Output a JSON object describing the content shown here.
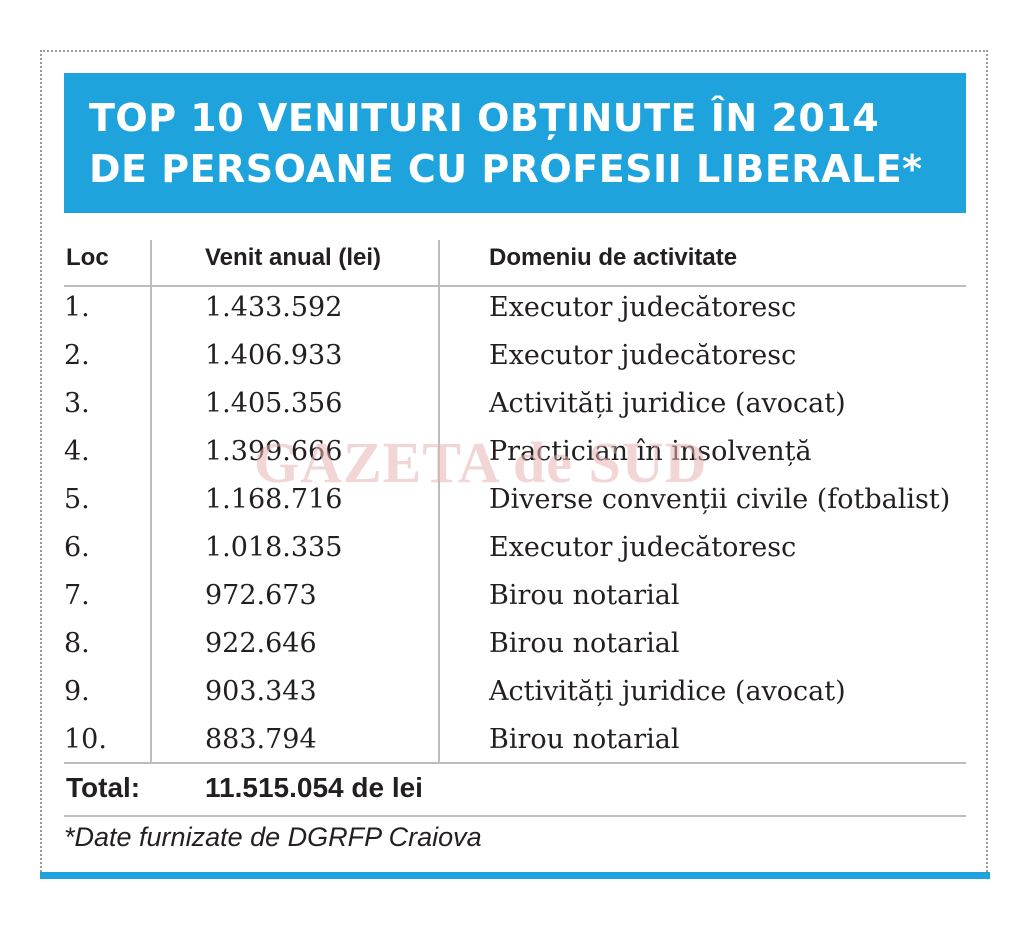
{
  "chart_data": {
    "type": "table",
    "title_lines": [
      "TOP 10 VENITURI OBȚINUTE ÎN 2014",
      "DE PERSOANE CU PROFESII LIBERALE*"
    ],
    "columns": [
      "Loc",
      "Venit anual (lei)",
      "Domeniu de activitate"
    ],
    "rows": [
      [
        "1.",
        "1.433.592",
        "Executor judecătoresc"
      ],
      [
        "2.",
        "1.406.933",
        "Executor judecătoresc"
      ],
      [
        "3.",
        "1.405.356",
        "Activități juridice (avocat)"
      ],
      [
        "4.",
        "1.399.666",
        "Practician în insolvență"
      ],
      [
        "5.",
        "1.168.716",
        "Diverse convenții civile (fotbalist)"
      ],
      [
        "6.",
        "1.018.335",
        "Executor judecătoresc"
      ],
      [
        "7.",
        "972.673",
        "Birou notarial"
      ],
      [
        "8.",
        "922.646",
        "Birou notarial"
      ],
      [
        "9.",
        "903.343",
        "Activități juridice (avocat)"
      ],
      [
        "10.",
        "883.794",
        "Birou notarial"
      ]
    ],
    "total_label": "Total:",
    "total_value": "11.515.054 de lei",
    "footnote": "*Date furnizate de DGRFP Craiova"
  },
  "watermark": "GAZETA de SUD",
  "colors": {
    "header_bg": "#1ea3dc",
    "header_text": "#ffffff",
    "rule": "#bdbdbd",
    "text": "#231f20",
    "watermark": "#e8b4b4"
  }
}
